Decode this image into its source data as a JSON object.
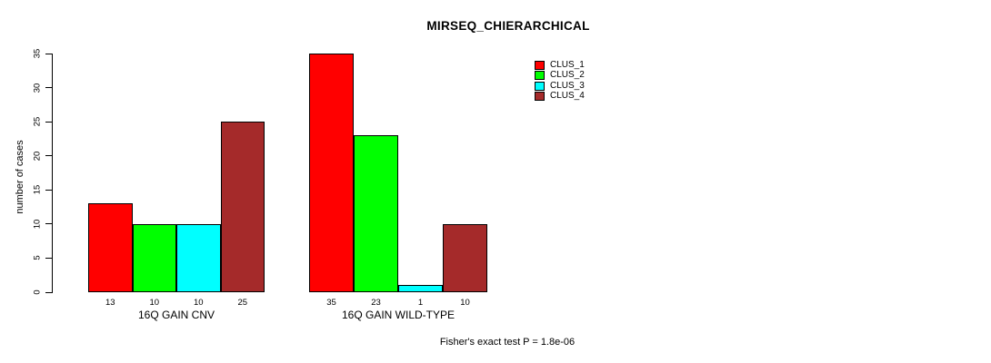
{
  "title": "MIRSEQ_CHIERARCHICAL",
  "chart_data": {
    "type": "bar",
    "title": "MIRSEQ_CHIERARCHICAL",
    "ylabel": "number of cases",
    "xlabel": "",
    "ylim": [
      0,
      35
    ],
    "yticks": [
      0,
      5,
      10,
      15,
      20,
      25,
      30,
      35
    ],
    "categories": [
      "16Q GAIN CNV",
      "16Q GAIN WILD-TYPE"
    ],
    "series": [
      {
        "name": "CLUS_1",
        "color": "#FF0000",
        "values": [
          13,
          35
        ]
      },
      {
        "name": "CLUS_2",
        "color": "#00FF00",
        "values": [
          10,
          23
        ]
      },
      {
        "name": "CLUS_3",
        "color": "#00FFFF",
        "values": [
          10,
          1
        ]
      },
      {
        "name": "CLUS_4",
        "color": "#A52A2A",
        "values": [
          25,
          10
        ]
      }
    ],
    "bar_value_labels_shown": true,
    "grid": false,
    "legend_position": "top-right",
    "annotation": "Fisher's exact test P = 1.8e-06"
  }
}
